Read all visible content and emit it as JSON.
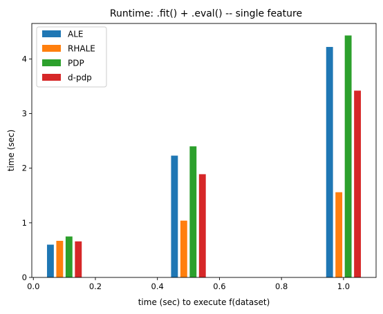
{
  "chart_data": {
    "type": "bar",
    "title": "Runtime: .fit() + .eval() -- single feature",
    "xlabel": "time (sec) to execute f(dataset)",
    "ylabel": "time (sec)",
    "xlim": [
      -0.005,
      1.105
    ],
    "ylim": [
      0,
      4.65
    ],
    "xticks": [
      "0.0",
      "0.2",
      "0.4",
      "0.6",
      "0.8",
      "1.0"
    ],
    "yticks": [
      "0",
      "1",
      "2",
      "3",
      "4"
    ],
    "bar_width": 0.022,
    "legend_position": "top-left",
    "grid": false,
    "series": [
      {
        "name": "ALE",
        "color": "#1f77b4",
        "x": [
          0.055,
          0.455,
          0.955
        ],
        "values": [
          0.6,
          2.23,
          4.22
        ]
      },
      {
        "name": "RHALE",
        "color": "#ff7f0e",
        "x": [
          0.085,
          0.485,
          0.985
        ],
        "values": [
          0.67,
          1.04,
          1.56
        ]
      },
      {
        "name": "PDP",
        "color": "#2ca02c",
        "x": [
          0.115,
          0.515,
          1.015
        ],
        "values": [
          0.75,
          2.4,
          4.43
        ]
      },
      {
        "name": "d-pdp",
        "color": "#d62728",
        "x": [
          0.145,
          0.545,
          1.045
        ],
        "values": [
          0.66,
          1.89,
          3.42
        ]
      }
    ]
  }
}
